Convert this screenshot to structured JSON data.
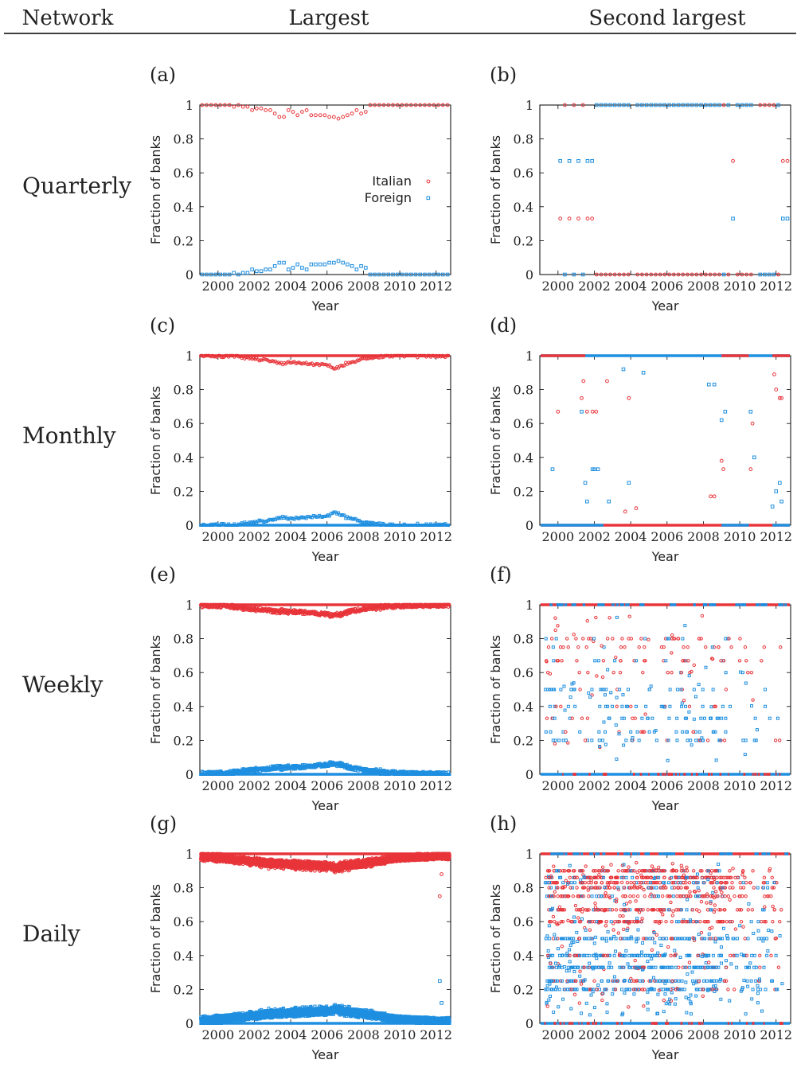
{
  "header": {
    "col_network": "Network",
    "col_largest": "Largest",
    "col_second": "Second largest"
  },
  "rows": [
    "Quarterly",
    "Monthly",
    "Weekly",
    "Daily"
  ],
  "axis": {
    "xlabel": "Year",
    "ylabel": "Fraction of banks",
    "xticks": [
      2000,
      2002,
      2004,
      2006,
      2008,
      2010,
      2012
    ],
    "yticks": [
      0,
      0.2,
      0.4,
      0.6,
      0.8,
      1
    ],
    "xlim": [
      1999,
      2012.8
    ],
    "ylim": [
      0,
      1
    ]
  },
  "legend": {
    "italian": "Italian",
    "foreign": "Foreign"
  },
  "colors": {
    "italian": "#e8353a",
    "foreign": "#1f8fe0"
  },
  "chart_data": [
    {
      "panel": "(a)",
      "type": "scatter",
      "network": "Quarterly",
      "component": "Largest",
      "xlabel": "Year",
      "ylabel": "Fraction of banks",
      "series": [
        {
          "name": "Italian",
          "x": [
            1999.125,
            1999.375,
            1999.625,
            1999.875,
            2000.125,
            2000.375,
            2000.625,
            2000.875,
            2001.125,
            2001.375,
            2001.625,
            2001.875,
            2002.125,
            2002.375,
            2002.625,
            2002.875,
            2003.125,
            2003.375,
            2003.625,
            2003.875,
            2004.125,
            2004.375,
            2004.625,
            2004.875,
            2005.125,
            2005.375,
            2005.625,
            2005.875,
            2006.125,
            2006.375,
            2006.625,
            2006.875,
            2007.125,
            2007.375,
            2007.625,
            2007.875,
            2008.125,
            2008.375,
            2008.625,
            2008.875,
            2009.125,
            2009.375,
            2009.625,
            2009.875,
            2010.125,
            2010.375,
            2010.625,
            2010.875,
            2011.125,
            2011.375,
            2011.625,
            2011.875,
            2012.125,
            2012.375,
            2012.625
          ],
          "y": [
            1,
            1,
            1,
            1,
            1,
            1,
            1,
            0.99,
            1,
            0.99,
            0.99,
            0.97,
            0.98,
            0.98,
            0.97,
            0.97,
            0.95,
            0.93,
            0.93,
            0.97,
            0.96,
            0.94,
            0.96,
            0.97,
            0.94,
            0.94,
            0.94,
            0.94,
            0.93,
            0.93,
            0.92,
            0.93,
            0.94,
            0.95,
            0.97,
            0.95,
            0.96,
            1,
            1,
            1,
            1,
            1,
            1,
            1,
            1,
            1,
            1,
            1,
            1,
            1,
            1,
            1,
            1,
            1,
            1
          ]
        },
        {
          "name": "Foreign",
          "x": [
            1999.125,
            1999.375,
            1999.625,
            1999.875,
            2000.125,
            2000.375,
            2000.625,
            2000.875,
            2001.125,
            2001.375,
            2001.625,
            2001.875,
            2002.125,
            2002.375,
            2002.625,
            2002.875,
            2003.125,
            2003.375,
            2003.625,
            2003.875,
            2004.125,
            2004.375,
            2004.625,
            2004.875,
            2005.125,
            2005.375,
            2005.625,
            2005.875,
            2006.125,
            2006.375,
            2006.625,
            2006.875,
            2007.125,
            2007.375,
            2007.625,
            2007.875,
            2008.125,
            2008.375,
            2008.625,
            2008.875,
            2009.125,
            2009.375,
            2009.625,
            2009.875,
            2010.125,
            2010.375,
            2010.625,
            2010.875,
            2011.125,
            2011.375,
            2011.625,
            2011.875,
            2012.125,
            2012.375,
            2012.625
          ],
          "y": [
            0,
            0,
            0,
            0,
            0,
            0,
            0,
            0.01,
            0,
            0.01,
            0.01,
            0.03,
            0.02,
            0.02,
            0.03,
            0.03,
            0.05,
            0.07,
            0.07,
            0.03,
            0.04,
            0.06,
            0.04,
            0.03,
            0.06,
            0.06,
            0.06,
            0.06,
            0.07,
            0.07,
            0.08,
            0.07,
            0.06,
            0.05,
            0.03,
            0.05,
            0.04,
            0,
            0,
            0,
            0,
            0,
            0,
            0,
            0,
            0,
            0,
            0,
            0,
            0,
            0,
            0,
            0,
            0,
            0
          ]
        }
      ]
    },
    {
      "panel": "(b)",
      "type": "scatter",
      "network": "Quarterly",
      "component": "Second largest",
      "xlabel": "Year",
      "ylabel": "Fraction of banks",
      "series": [
        {
          "name": "Italian",
          "x": [
            2000.125,
            2000.375,
            2000.625,
            2000.875,
            2001.125,
            2001.375,
            2001.625,
            2001.875,
            2002.125,
            2002.375,
            2002.625,
            2002.875,
            2003.125,
            2003.375,
            2003.625,
            2003.875,
            2004.375,
            2004.625,
            2004.875,
            2005.125,
            2005.375,
            2005.625,
            2005.875,
            2006.125,
            2006.375,
            2006.625,
            2006.875,
            2007.125,
            2007.375,
            2007.625,
            2007.875,
            2008.125,
            2008.375,
            2008.625,
            2008.875,
            2009.125,
            2009.375,
            2009.625,
            2009.875,
            2010.125,
            2010.375,
            2010.625,
            2011.125,
            2011.375,
            2011.625,
            2011.875,
            2012.125,
            2012.375,
            2012.625
          ],
          "y": [
            0.33,
            1,
            0.33,
            1,
            0.33,
            1,
            0.33,
            0.33,
            0,
            0,
            0,
            0,
            0,
            0,
            0,
            0,
            0,
            0,
            0,
            0,
            0,
            0,
            0,
            0,
            0,
            0,
            0,
            0,
            0,
            0,
            0,
            0,
            0,
            0,
            0,
            1,
            0,
            0.67,
            0,
            0,
            0,
            0,
            1,
            1,
            1,
            1,
            0,
            0.67,
            0.67
          ]
        },
        {
          "name": "Foreign",
          "x": [
            2000.125,
            2000.375,
            2000.625,
            2000.875,
            2001.125,
            2001.375,
            2001.625,
            2001.875,
            2002.125,
            2002.375,
            2002.625,
            2002.875,
            2003.125,
            2003.375,
            2003.625,
            2003.875,
            2004.375,
            2004.625,
            2004.875,
            2005.125,
            2005.375,
            2005.625,
            2005.875,
            2006.125,
            2006.375,
            2006.625,
            2006.875,
            2007.125,
            2007.375,
            2007.625,
            2007.875,
            2008.125,
            2008.375,
            2008.625,
            2008.875,
            2009.125,
            2009.375,
            2009.625,
            2009.875,
            2010.125,
            2010.375,
            2010.625,
            2011.125,
            2011.375,
            2011.625,
            2011.875,
            2012.125,
            2012.375,
            2012.625
          ],
          "y": [
            0.67,
            0,
            0.67,
            0,
            0.67,
            0,
            0.67,
            0.67,
            1,
            1,
            1,
            1,
            1,
            1,
            1,
            1,
            1,
            1,
            1,
            1,
            1,
            1,
            1,
            1,
            1,
            1,
            1,
            1,
            1,
            1,
            1,
            1,
            1,
            1,
            1,
            0,
            1,
            0.33,
            1,
            1,
            1,
            1,
            0,
            0,
            0,
            0,
            1,
            0.33,
            0.33
          ]
        }
      ]
    },
    {
      "panel": "(c)",
      "type": "scatter",
      "network": "Monthly",
      "component": "Largest",
      "xlabel": "Year",
      "ylabel": "Fraction of banks",
      "trend": {
        "x": [
          1999,
          2000,
          2001,
          2002,
          2003,
          2003.5,
          2004,
          2004.5,
          2005,
          2005.5,
          2006,
          2006.5,
          2007,
          2007.5,
          2008,
          2009,
          2010,
          2011,
          2012.8
        ],
        "y": [
          1,
          1,
          0.995,
          0.985,
          0.97,
          0.955,
          0.965,
          0.96,
          0.955,
          0.955,
          0.95,
          0.93,
          0.955,
          0.965,
          0.985,
          0.997,
          1,
          1,
          1
        ],
        "spread": 0.02
      }
    },
    {
      "panel": "(d)",
      "type": "scatter",
      "network": "Monthly",
      "component": "Second largest",
      "xlabel": "Year",
      "ylabel": "Fraction of banks",
      "series": [
        {
          "name": "Italian",
          "x": [
            2000,
            2001.3,
            2001.4,
            2001.6,
            2001.9,
            2002.1,
            2002.7,
            2003.7,
            2003.9,
            2004.3,
            2008.4,
            2008.6,
            2009,
            2009.1,
            2010.6,
            2010.7,
            2011.9,
            2012,
            2012.2,
            2012.3
          ],
          "y": [
            0.67,
            0.75,
            0.85,
            0.67,
            0.67,
            0.67,
            0.85,
            0.08,
            0.75,
            0.1,
            0.17,
            0.17,
            0.38,
            0.33,
            0.33,
            0.6,
            0.89,
            0.8,
            0.75,
            0.75
          ]
        },
        {
          "name": "Foreign",
          "x": [
            1999.7,
            2001.3,
            2001.5,
            2001.6,
            2001.9,
            2002,
            2002.2,
            2002.8,
            2003.6,
            2003.9,
            2004.7,
            2008.3,
            2008.6,
            2009,
            2009.2,
            2010.6,
            2010.8,
            2011.8,
            2012,
            2012.2,
            2012.3
          ],
          "y": [
            0.33,
            0.67,
            0.25,
            0.14,
            0.33,
            0.33,
            0.33,
            0.14,
            0.92,
            0.25,
            0.9,
            0.83,
            0.83,
            0.62,
            0.67,
            0.67,
            0.4,
            0.11,
            0.2,
            0.25,
            0.14
          ]
        }
      ]
    },
    {
      "panel": "(e)",
      "type": "scatter",
      "network": "Weekly",
      "component": "Largest",
      "xlabel": "Year",
      "ylabel": "Fraction of banks",
      "trend": {
        "x": [
          1999,
          2000,
          2001,
          2002,
          2003,
          2004,
          2005,
          2005.5,
          2006,
          2006.5,
          2007,
          2008,
          2009,
          2010,
          2011,
          2012,
          2012.8
        ],
        "y": [
          1,
          0.998,
          0.99,
          0.98,
          0.97,
          0.965,
          0.96,
          0.955,
          0.95,
          0.945,
          0.96,
          0.98,
          0.99,
          0.995,
          0.997,
          0.998,
          1
        ],
        "spread": 0.035
      }
    },
    {
      "panel": "(f)",
      "type": "scatter",
      "network": "Weekly",
      "component": "Second largest",
      "xlabel": "Year",
      "ylabel": "Fraction of banks",
      "scatter_fraction_levels": [
        0.2,
        0.25,
        0.33,
        0.4,
        0.5,
        0.6,
        0.67,
        0.75,
        0.8
      ]
    },
    {
      "panel": "(g)",
      "type": "scatter",
      "network": "Daily",
      "component": "Largest",
      "xlabel": "Year",
      "ylabel": "Fraction of banks",
      "trend": {
        "x": [
          1999,
          2000,
          2001,
          2002,
          2003,
          2004,
          2005,
          2006,
          2006.5,
          2007,
          2008,
          2009,
          2010,
          2011,
          2012,
          2012.8
        ],
        "y": [
          0.99,
          0.985,
          0.975,
          0.965,
          0.955,
          0.95,
          0.945,
          0.94,
          0.935,
          0.945,
          0.955,
          0.97,
          0.98,
          0.985,
          0.99,
          0.99
        ],
        "spread": 0.06
      },
      "outliers_italian": [
        [
          2012.2,
          0.75
        ],
        [
          2012.3,
          0.88
        ]
      ],
      "outliers_foreign": [
        [
          2012.2,
          0.25
        ],
        [
          2012.3,
          0.12
        ]
      ]
    },
    {
      "panel": "(h)",
      "type": "scatter",
      "network": "Daily",
      "component": "Second largest",
      "xlabel": "Year",
      "ylabel": "Fraction of banks",
      "scatter_fraction_levels": [
        0.2,
        0.25,
        0.33,
        0.4,
        0.5,
        0.6,
        0.67,
        0.75,
        0.8,
        0.83,
        0.86,
        0.9
      ]
    }
  ]
}
